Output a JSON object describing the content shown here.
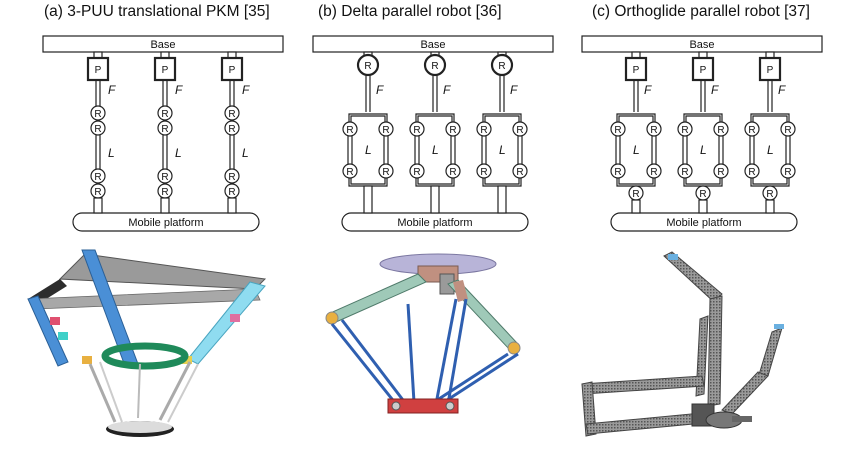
{
  "panels": [
    {
      "title": "(a) 3-PUU translational PKM [35]",
      "base_label": "Base",
      "platform_label": "Mobile platform",
      "top_joint": "P",
      "joint_label": "R",
      "upper_link_label": "F",
      "lower_link_label": "L"
    },
    {
      "title": "(b) Delta parallel robot [36]",
      "base_label": "Base",
      "platform_label": "Mobile platform",
      "top_joint": "R",
      "joint_label": "R",
      "upper_link_label": "F",
      "lower_link_label": "L"
    },
    {
      "title": "(c) Orthoglide parallel robot [37]",
      "base_label": "Base",
      "platform_label": "Mobile platform",
      "top_joint": "P",
      "joint_label": "R",
      "upper_link_label": "F",
      "lower_link_label": "L"
    }
  ],
  "colors": {
    "a_blue": "#4a8fd6",
    "a_gray": "#9a9a9a",
    "a_dark": "#333333",
    "a_ring": "#1f8a5a",
    "a_cyan": "#8fdcf0",
    "b_plate": "#b8b4d8",
    "b_arm": "#9fc9b8",
    "b_rod": "#2f5fb0",
    "b_joint": "#d04040",
    "c_metal": "#8c8c8c"
  }
}
